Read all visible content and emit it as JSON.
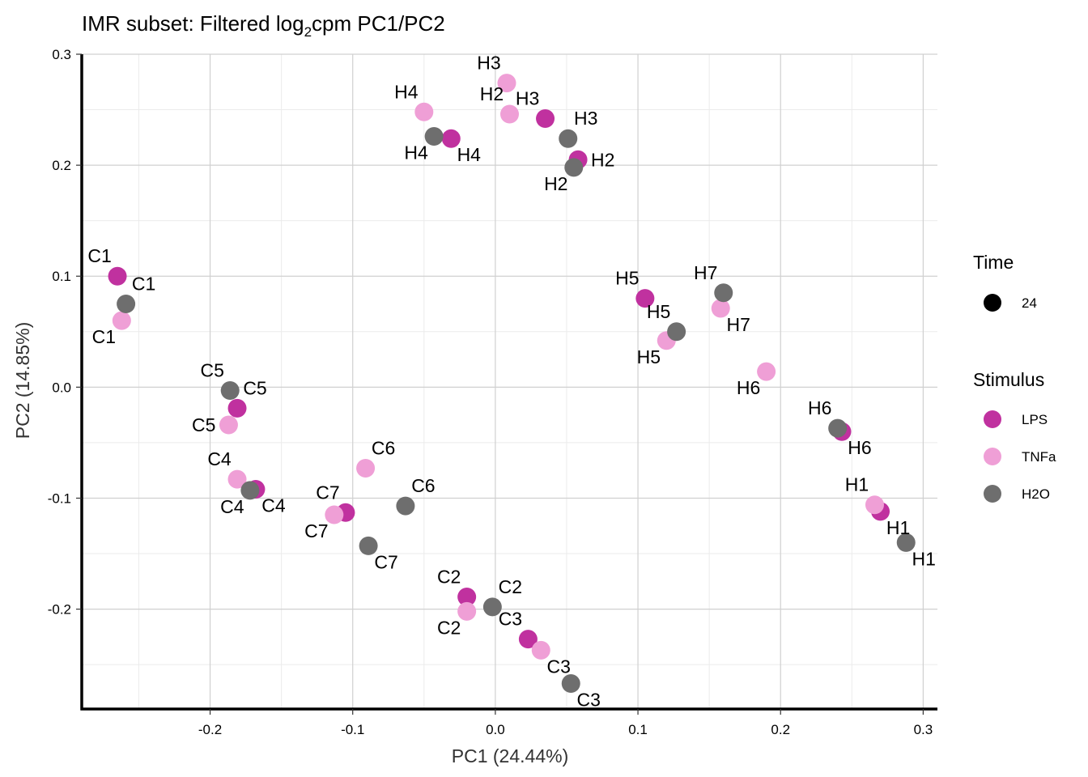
{
  "chart_data": {
    "type": "scatter",
    "title": "IMR subset: Filtered log",
    "title_sub": "2",
    "title_rest": "cpm PC1/PC2",
    "xlabel": "PC1 (24.44%)",
    "ylabel": "PC2 (14.85%)",
    "xlim": [
      -0.29,
      0.31
    ],
    "ylim": [
      -0.29,
      0.3
    ],
    "xticks": [
      -0.2,
      -0.1,
      0.0,
      0.1,
      0.2,
      0.3
    ],
    "xtick_labels": [
      "-0.2",
      "-0.1",
      "0.0",
      "0.1",
      "0.2",
      "0.3"
    ],
    "yticks": [
      -0.2,
      -0.1,
      0.0,
      0.1,
      0.2,
      0.3
    ],
    "ytick_labels": [
      "-0.2",
      "-0.1",
      "0.0",
      "0.1",
      "0.2",
      "0.3"
    ],
    "grid": true,
    "legend": {
      "placement": "right",
      "time_title": "Time",
      "time_items": [
        "24"
      ],
      "stimulus_title": "Stimulus",
      "stimulus_items": [
        {
          "name": "LPS",
          "color": "#c0319f"
        },
        {
          "name": "TNFa",
          "color": "#ef9fd6"
        },
        {
          "name": "H2O",
          "color": "#6e6e6e"
        }
      ]
    },
    "series": [
      {
        "name": "LPS",
        "color": "#c0319f",
        "points": [
          {
            "x": -0.265,
            "y": 0.1,
            "label": "C1",
            "pos": "tl"
          },
          {
            "x": -0.181,
            "y": -0.019,
            "label": "C5",
            "pos": "tr"
          },
          {
            "x": -0.168,
            "y": -0.092,
            "label": "C4",
            "pos": "br"
          },
          {
            "x": -0.105,
            "y": -0.113,
            "label": "C7",
            "pos": "tl"
          },
          {
            "x": -0.02,
            "y": -0.189,
            "label": "C2",
            "pos": "tl"
          },
          {
            "x": 0.023,
            "y": -0.227,
            "label": "C3",
            "pos": "tl"
          },
          {
            "x": -0.031,
            "y": 0.224,
            "label": "H4",
            "pos": "br"
          },
          {
            "x": 0.035,
            "y": 0.242,
            "label": "H3",
            "pos": "tl"
          },
          {
            "x": 0.058,
            "y": 0.205,
            "label": "H2",
            "pos": "r"
          },
          {
            "x": 0.105,
            "y": 0.08,
            "label": "H5",
            "pos": "tl"
          },
          {
            "x": 0.243,
            "y": -0.04,
            "label": "H6",
            "pos": "br"
          },
          {
            "x": 0.27,
            "y": -0.112,
            "label": "H1",
            "pos": "br"
          }
        ]
      },
      {
        "name": "TNFa",
        "color": "#ef9fd6",
        "points": [
          {
            "x": -0.262,
            "y": 0.06,
            "label": "C1",
            "pos": "bl"
          },
          {
            "x": -0.187,
            "y": -0.034,
            "label": "C5",
            "pos": "l"
          },
          {
            "x": -0.181,
            "y": -0.083,
            "label": "C4",
            "pos": "tl"
          },
          {
            "x": -0.091,
            "y": -0.073,
            "label": "C6",
            "pos": "tr"
          },
          {
            "x": -0.113,
            "y": -0.115,
            "label": "C7",
            "pos": "bl"
          },
          {
            "x": -0.02,
            "y": -0.202,
            "label": "C2",
            "pos": "bl"
          },
          {
            "x": 0.032,
            "y": -0.237,
            "label": "C3",
            "pos": "br"
          },
          {
            "x": -0.05,
            "y": 0.248,
            "label": "H4",
            "pos": "tl"
          },
          {
            "x": 0.008,
            "y": 0.274,
            "label": "H3",
            "pos": "tl"
          },
          {
            "x": 0.01,
            "y": 0.246,
            "label": "H2",
            "pos": "tl"
          },
          {
            "x": 0.12,
            "y": 0.042,
            "label": "H5",
            "pos": "bl"
          },
          {
            "x": 0.158,
            "y": 0.071,
            "label": "H7",
            "pos": "br"
          },
          {
            "x": 0.19,
            "y": 0.014,
            "label": "H6",
            "pos": "bl"
          },
          {
            "x": 0.266,
            "y": -0.106,
            "label": "H1",
            "pos": "tl"
          }
        ]
      },
      {
        "name": "H2O",
        "color": "#6e6e6e",
        "points": [
          {
            "x": -0.259,
            "y": 0.075,
            "label": "C1",
            "pos": "tr"
          },
          {
            "x": -0.186,
            "y": -0.003,
            "label": "C5",
            "pos": "tl"
          },
          {
            "x": -0.172,
            "y": -0.093,
            "label": "C4",
            "pos": "bl"
          },
          {
            "x": -0.063,
            "y": -0.107,
            "label": "C6",
            "pos": "tr"
          },
          {
            "x": -0.089,
            "y": -0.143,
            "label": "C7",
            "pos": "br"
          },
          {
            "x": -0.002,
            "y": -0.198,
            "label": "C2",
            "pos": "tr"
          },
          {
            "x": 0.053,
            "y": -0.267,
            "label": "C3",
            "pos": "br"
          },
          {
            "x": -0.043,
            "y": 0.226,
            "label": "H4",
            "pos": "bl"
          },
          {
            "x": 0.051,
            "y": 0.224,
            "label": "H3",
            "pos": "tr"
          },
          {
            "x": 0.055,
            "y": 0.198,
            "label": "H2",
            "pos": "bl"
          },
          {
            "x": 0.127,
            "y": 0.05,
            "label": "H5",
            "pos": "tl"
          },
          {
            "x": 0.16,
            "y": 0.085,
            "label": "H7",
            "pos": "tl"
          },
          {
            "x": 0.24,
            "y": -0.037,
            "label": "H6",
            "pos": "tl"
          },
          {
            "x": 0.288,
            "y": -0.14,
            "label": "H1",
            "pos": "br"
          }
        ]
      }
    ],
    "extra_labels": [
      {
        "x": -0.091,
        "y": -0.13,
        "label": "C6"
      },
      {
        "x": 0.13,
        "y": 0.07,
        "label": "H5"
      },
      {
        "x": 0.173,
        "y": 0.085,
        "label": "H7"
      },
      {
        "x": 0.277,
        "y": -0.123,
        "label": "H1"
      }
    ]
  }
}
